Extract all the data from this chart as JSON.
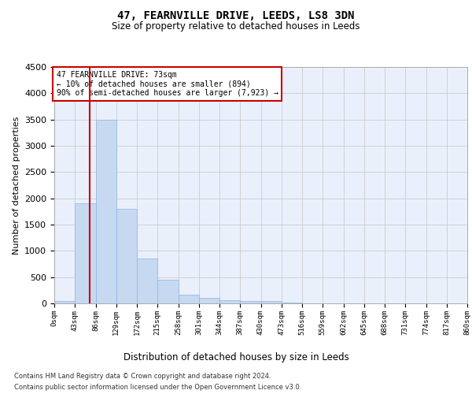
{
  "title": "47, FEARNVILLE DRIVE, LEEDS, LS8 3DN",
  "subtitle": "Size of property relative to detached houses in Leeds",
  "xlabel": "Distribution of detached houses by size in Leeds",
  "ylabel": "Number of detached properties",
  "footnote1": "Contains HM Land Registry data © Crown copyright and database right 2024.",
  "footnote2": "Contains public sector information licensed under the Open Government Licence v3.0.",
  "annotation_line1": "47 FEARNVILLE DRIVE: 73sqm",
  "annotation_line2": "← 10% of detached houses are smaller (894)",
  "annotation_line3": "90% of semi-detached houses are larger (7,923) →",
  "bar_color": "#c6d9f1",
  "bar_edge_color": "#8db4e2",
  "vline_color": "#cc0000",
  "vline_x": 73,
  "annotation_box_edge_color": "#cc0000",
  "ylim": [
    0,
    4500
  ],
  "bin_edges": [
    0,
    43,
    86,
    129,
    172,
    215,
    258,
    301,
    344,
    387,
    430,
    473,
    516,
    559,
    602,
    645,
    688,
    731,
    774,
    817,
    860
  ],
  "bar_heights": [
    50,
    1900,
    3500,
    1800,
    850,
    450,
    160,
    100,
    60,
    50,
    40,
    10,
    5,
    3,
    2,
    1,
    1,
    0,
    0,
    0
  ],
  "grid_color": "#cccccc",
  "bg_color": "#eaf0fb",
  "fig_bg_color": "#ffffff",
  "yticks": [
    0,
    500,
    1000,
    1500,
    2000,
    2500,
    3000,
    3500,
    4000,
    4500
  ]
}
